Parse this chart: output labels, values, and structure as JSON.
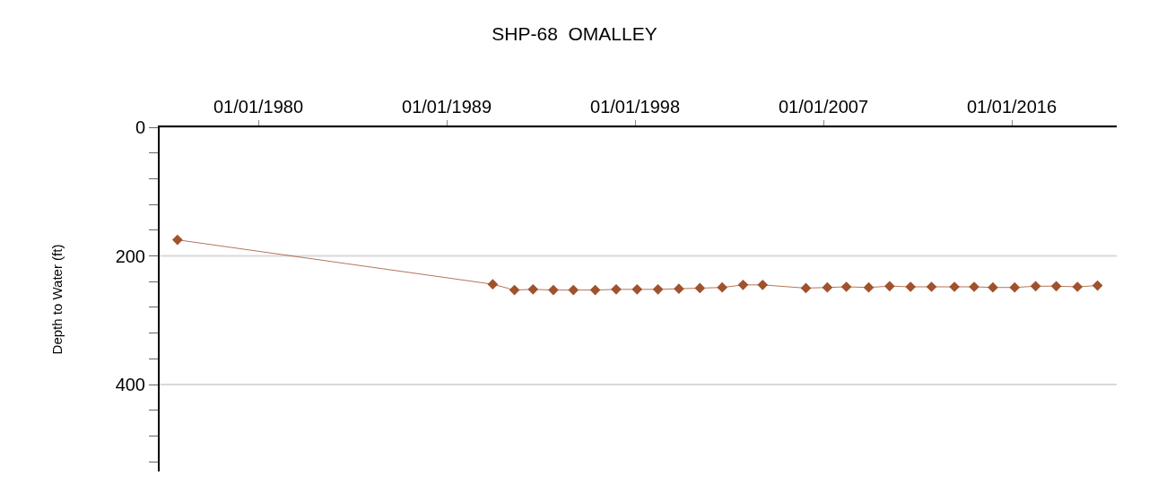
{
  "chart_data": {
    "type": "line",
    "title": "SHP-68  OMALLEY",
    "ylabel": "Depth to Water (ft)",
    "x": [
      "1976-02-20",
      "1991-03-15",
      "1992-03-28",
      "1993-02-15",
      "1994-02-05",
      "1995-01-20",
      "1996-02-05",
      "1997-02-05",
      "1998-02-05",
      "1999-02-05",
      "2000-02-05",
      "2001-02-05",
      "2002-03-01",
      "2003-03-01",
      "2004-02-05",
      "2006-03-01",
      "2007-03-10",
      "2008-02-05",
      "2009-03-01",
      "2010-03-01",
      "2011-03-01",
      "2012-03-01",
      "2013-04-05",
      "2014-03-15",
      "2015-02-05",
      "2016-02-20",
      "2017-02-20",
      "2018-02-15",
      "2019-02-20",
      "2020-02-05"
    ],
    "series": [
      {
        "color": "#a0522d",
        "values": [
          175,
          244,
          253,
          252,
          253,
          253,
          253,
          252,
          252,
          252,
          251,
          250,
          249,
          245,
          245,
          250,
          249,
          248,
          249,
          247,
          248,
          248,
          248,
          248,
          249,
          249,
          247,
          247,
          248,
          246
        ]
      }
    ],
    "xlim": [
      "1975-04-15",
      "2021-01-05"
    ],
    "xticks": [
      {
        "value": "1980-01-01",
        "label": "01/01/1980"
      },
      {
        "value": "1989-01-01",
        "label": "01/01/1989"
      },
      {
        "value": "1998-01-01",
        "label": "01/01/1998"
      },
      {
        "value": "2007-01-01",
        "label": "01/01/2007"
      },
      {
        "value": "2016-01-01",
        "label": "01/01/2016"
      }
    ],
    "ylim": [
      535,
      0
    ],
    "yticks": [
      0,
      {
        "value": 40,
        "label": null
      },
      {
        "value": 80,
        "label": null
      },
      {
        "value": 120,
        "label": null
      },
      {
        "value": 160,
        "label": null
      },
      200,
      {
        "value": 240,
        "label": null
      },
      {
        "value": 280,
        "label": null
      },
      {
        "value": 320,
        "label": null
      },
      {
        "value": 360,
        "label": null
      },
      400,
      {
        "value": 440,
        "label": null
      },
      {
        "value": 480,
        "label": null
      },
      {
        "value": 520,
        "label": null
      }
    ],
    "grid": "y",
    "marker": "diamond",
    "line_style": "solid"
  }
}
